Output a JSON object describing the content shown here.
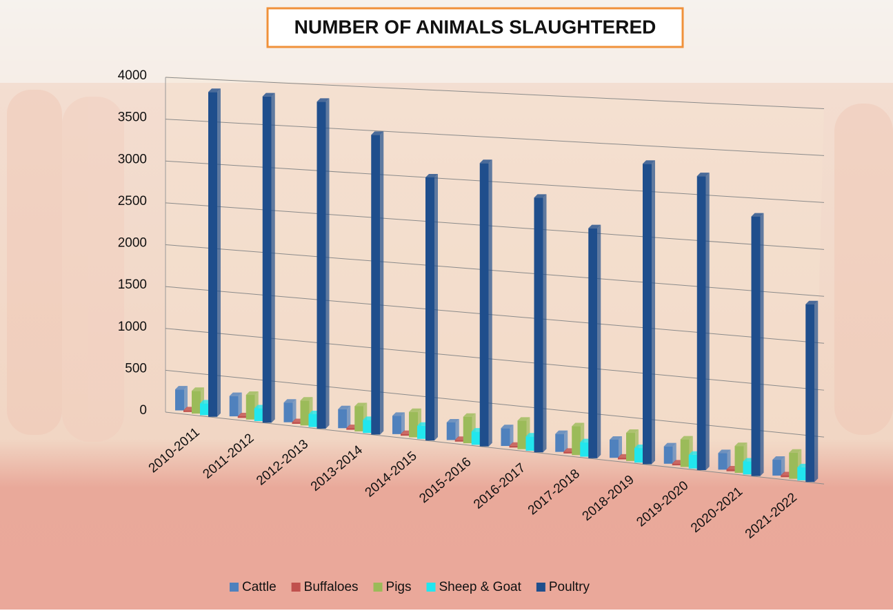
{
  "chart_data": {
    "type": "bar3d",
    "title": "NUMBER OF ANIMALS SLAUGHTERED",
    "categories": [
      "2010-2011",
      "2011-2012",
      "2012-2013",
      "2013-2014",
      "2014-2015",
      "2015-2016",
      "2016-2017",
      "2017-2018",
      "2018-2019",
      "2019-2020",
      "2020-2021",
      "2021-2022"
    ],
    "series": [
      {
        "name": "Cattle",
        "color": "#4f81bd",
        "values": [
          250,
          240,
          230,
          220,
          210,
          200,
          200,
          200,
          200,
          190,
          180,
          170
        ]
      },
      {
        "name": "Buffaloes",
        "color": "#c0504d",
        "values": [
          20,
          20,
          20,
          20,
          20,
          20,
          20,
          20,
          20,
          20,
          20,
          20
        ]
      },
      {
        "name": "Pigs",
        "color": "#9bbb59",
        "values": [
          270,
          290,
          290,
          290,
          290,
          300,
          320,
          320,
          310,
          300,
          290,
          280
        ]
      },
      {
        "name": "Sheep & Goat",
        "color": "#22e6ee",
        "values": [
          140,
          150,
          150,
          150,
          150,
          150,
          160,
          160,
          160,
          150,
          140,
          140
        ]
      },
      {
        "name": "Poultry",
        "color": "#1f4e8c",
        "values": [
          3850,
          3830,
          3800,
          3450,
          3000,
          3200,
          2850,
          2550,
          3300,
          3200,
          2800,
          1900
        ]
      }
    ],
    "ylim": [
      0,
      4000
    ],
    "yticks": [
      0,
      500,
      1000,
      1500,
      2000,
      2500,
      3000,
      3500,
      4000
    ],
    "grid": true,
    "legend": "bottom"
  }
}
